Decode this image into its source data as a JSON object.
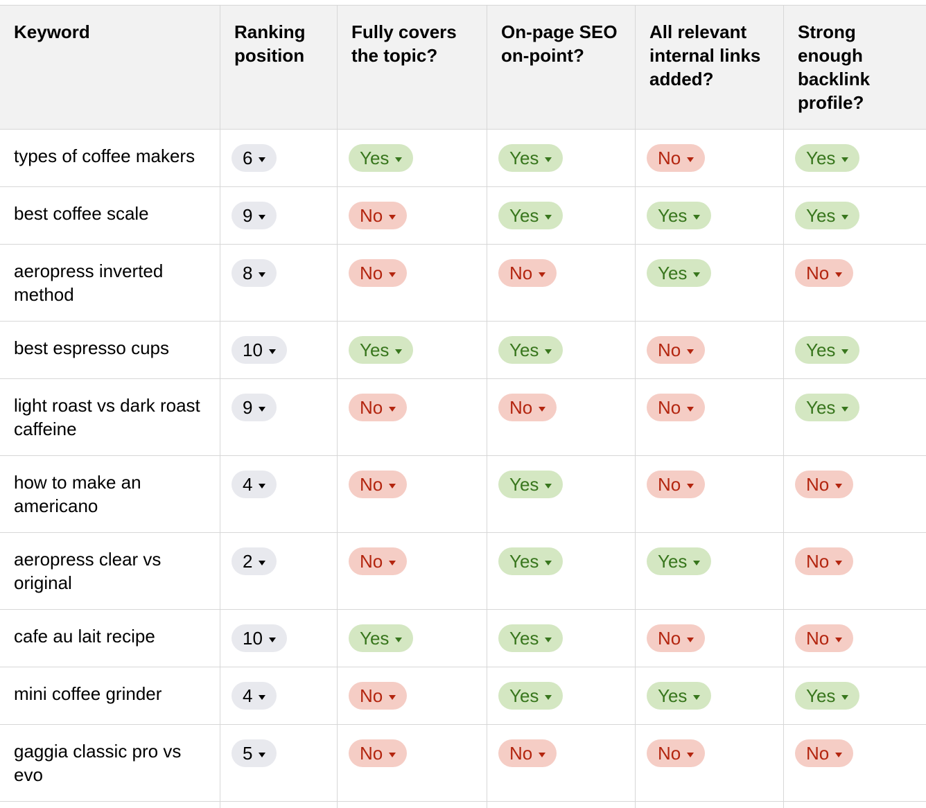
{
  "table": {
    "columns": [
      {
        "id": "keyword",
        "label": "Keyword"
      },
      {
        "id": "ranking",
        "label": "Ranking position"
      },
      {
        "id": "covers",
        "label": "Fully covers the topic?"
      },
      {
        "id": "onpage",
        "label": "On-page SEO on-point?"
      },
      {
        "id": "internal",
        "label": "All relevant internal links added?"
      },
      {
        "id": "backlink",
        "label": "Strong enough backlink profile?"
      }
    ],
    "rows": [
      {
        "keyword": "types of coffee makers",
        "ranking": "6",
        "covers": "Yes",
        "onpage": "Yes",
        "internal": "No",
        "backlink": "Yes"
      },
      {
        "keyword": "best coffee scale",
        "ranking": "9",
        "covers": "No",
        "onpage": "Yes",
        "internal": "Yes",
        "backlink": "Yes"
      },
      {
        "keyword": "aeropress inverted method",
        "ranking": "8",
        "covers": "No",
        "onpage": "No",
        "internal": "Yes",
        "backlink": "No"
      },
      {
        "keyword": "best espresso cups",
        "ranking": "10",
        "covers": "Yes",
        "onpage": "Yes",
        "internal": "No",
        "backlink": "Yes"
      },
      {
        "keyword": "light roast vs dark roast caffeine",
        "ranking": "9",
        "covers": "No",
        "onpage": "No",
        "internal": "No",
        "backlink": "Yes"
      },
      {
        "keyword": "how to make an americano",
        "ranking": "4",
        "covers": "No",
        "onpage": "Yes",
        "internal": "No",
        "backlink": "No"
      },
      {
        "keyword": "aeropress clear vs original",
        "ranking": "2",
        "covers": "No",
        "onpage": "Yes",
        "internal": "Yes",
        "backlink": "No"
      },
      {
        "keyword": "cafe au lait recipe",
        "ranking": "10",
        "covers": "Yes",
        "onpage": "Yes",
        "internal": "No",
        "backlink": "No"
      },
      {
        "keyword": "mini coffee grinder",
        "ranking": "4",
        "covers": "No",
        "onpage": "Yes",
        "internal": "Yes",
        "backlink": "Yes"
      },
      {
        "keyword": "gaggia classic pro vs evo",
        "ranking": "5",
        "covers": "No",
        "onpage": "No",
        "internal": "No",
        "backlink": "No"
      }
    ]
  },
  "icons": {
    "dropdown_caret": "chevron-down-icon"
  },
  "colors": {
    "header_bg": "#f2f2f2",
    "border": "#d7d7d7",
    "ranking_bg": "#e8e9ee",
    "yes_bg": "#d4e7c2",
    "yes_text": "#38761d",
    "no_bg": "#f5cdc5",
    "no_text": "#b3250f"
  }
}
